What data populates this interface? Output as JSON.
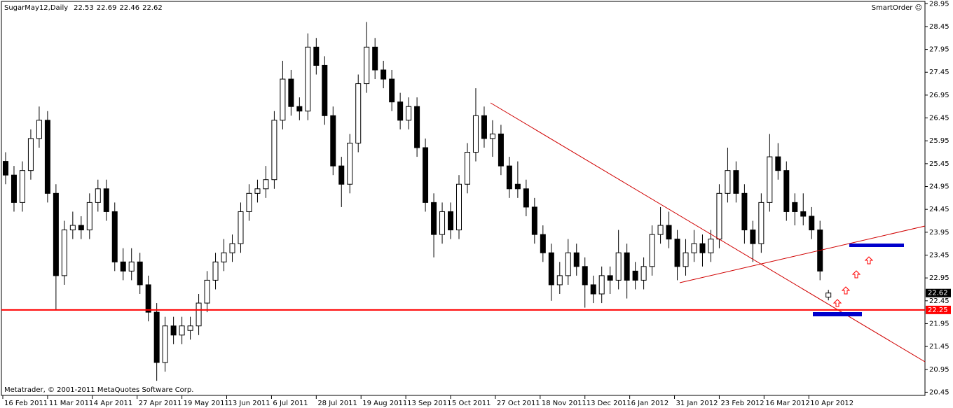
{
  "chart_data": {
    "type": "candlestick",
    "title": "SugarMay12,Daily",
    "watermark": "SmartOrder ☺",
    "footer": "Metatrader, © 2001-2011 MetaQuotes Software Corp.",
    "x": [
      1,
      4,
      7,
      10,
      13,
      16,
      19,
      22,
      25,
      28,
      31,
      34,
      37,
      40,
      43,
      46,
      49,
      52,
      55,
      58,
      61,
      64,
      67,
      70,
      73,
      76,
      79,
      82,
      85,
      88,
      91,
      94,
      97,
      100,
      103,
      106,
      109,
      112,
      115,
      118,
      121,
      124,
      127,
      130,
      133,
      136,
      139,
      142,
      145,
      148,
      151,
      154,
      157,
      160,
      163,
      166,
      169,
      172,
      175,
      178,
      181,
      184,
      187,
      190,
      193,
      196,
      199,
      202,
      205,
      208,
      211,
      214,
      217,
      220,
      223,
      226,
      229,
      232,
      235,
      238,
      241,
      244,
      247,
      250,
      253,
      256,
      259,
      262,
      265,
      268,
      271,
      274,
      277,
      280,
      283,
      286,
      289,
      292,
      295
    ],
    "open": [
      25.5,
      25.2,
      24.6,
      25.3,
      26.0,
      26.4,
      24.8,
      23.0,
      24.0,
      24.1,
      24.0,
      24.6,
      24.9,
      24.4,
      23.3,
      23.1,
      23.3,
      22.8,
      22.2,
      21.1,
      21.9,
      21.7,
      21.8,
      21.9,
      22.4,
      22.9,
      23.3,
      23.5,
      23.7,
      24.4,
      24.8,
      24.9,
      25.1,
      26.4,
      27.3,
      26.7,
      26.6,
      28.0,
      27.6,
      26.5,
      25.4,
      25.0,
      25.9,
      27.2,
      28.0,
      27.5,
      27.3,
      26.8,
      26.4,
      26.7,
      25.8,
      24.6,
      23.9,
      24.4,
      24.0,
      25.0,
      25.7,
      26.5,
      26.0,
      26.1,
      25.4,
      25.0,
      24.9,
      24.5,
      23.9,
      23.5,
      22.8,
      23.0,
      23.5,
      23.2,
      22.8,
      22.6,
      23.0,
      22.9,
      23.5,
      23.1,
      22.9,
      23.2,
      23.9,
      24.1,
      23.8,
      23.2,
      23.5,
      23.7,
      23.5,
      23.8,
      24.8,
      25.3,
      24.8,
      24.0,
      23.7,
      24.6,
      25.6,
      25.3,
      24.6,
      24.4,
      24.3,
      24.0,
      22.53
    ],
    "high": [
      25.7,
      25.4,
      25.5,
      26.2,
      26.7,
      26.6,
      25.0,
      24.2,
      24.4,
      24.3,
      24.8,
      25.1,
      25.1,
      24.6,
      23.6,
      23.6,
      23.5,
      23.0,
      22.4,
      22.1,
      22.1,
      22.1,
      22.1,
      22.6,
      23.1,
      23.5,
      23.8,
      23.9,
      24.6,
      25.0,
      25.1,
      25.4,
      26.6,
      27.7,
      27.5,
      26.9,
      28.3,
      28.2,
      27.8,
      26.7,
      25.6,
      26.1,
      27.4,
      28.55,
      28.2,
      27.7,
      27.5,
      27.0,
      26.9,
      26.9,
      26.0,
      24.8,
      24.6,
      24.6,
      25.2,
      25.9,
      27.1,
      26.7,
      26.4,
      26.3,
      25.6,
      25.5,
      25.1,
      24.7,
      24.1,
      23.7,
      23.3,
      23.8,
      23.7,
      23.4,
      23.0,
      23.2,
      23.2,
      24.0,
      23.7,
      23.3,
      23.4,
      24.1,
      24.5,
      24.4,
      24.0,
      23.8,
      24.0,
      23.9,
      24.0,
      25.0,
      25.8,
      25.5,
      25.0,
      24.2,
      24.8,
      26.1,
      25.9,
      25.5,
      24.8,
      24.8,
      24.5,
      24.2,
      22.69
    ],
    "low": [
      25.0,
      24.4,
      24.4,
      25.1,
      25.8,
      24.6,
      22.25,
      22.8,
      23.8,
      23.8,
      23.8,
      24.4,
      24.2,
      23.1,
      22.9,
      22.9,
      22.6,
      22.0,
      20.7,
      20.9,
      21.5,
      21.5,
      21.6,
      21.7,
      22.2,
      22.7,
      23.1,
      23.3,
      23.5,
      24.2,
      24.6,
      24.7,
      24.9,
      26.2,
      26.5,
      26.4,
      26.4,
      27.4,
      26.3,
      25.2,
      24.5,
      24.8,
      25.7,
      27.0,
      27.3,
      27.1,
      26.6,
      26.2,
      26.2,
      25.6,
      24.4,
      23.4,
      23.7,
      23.8,
      23.8,
      24.8,
      25.5,
      25.8,
      25.6,
      25.2,
      24.7,
      24.7,
      24.3,
      23.7,
      23.3,
      22.45,
      22.6,
      22.8,
      23.0,
      22.3,
      22.4,
      22.4,
      22.6,
      22.7,
      22.5,
      22.7,
      22.7,
      23.0,
      23.7,
      23.6,
      22.9,
      23.0,
      23.3,
      23.2,
      23.3,
      23.6,
      24.6,
      24.6,
      23.7,
      23.3,
      23.5,
      24.4,
      25.1,
      24.2,
      24.1,
      24.1,
      23.8,
      22.9,
      22.46
    ],
    "close": [
      25.2,
      24.6,
      25.3,
      26.0,
      26.4,
      24.8,
      23.0,
      24.0,
      24.1,
      24.0,
      24.6,
      24.9,
      24.4,
      23.3,
      23.1,
      23.3,
      22.8,
      22.2,
      21.1,
      21.9,
      21.7,
      21.9,
      21.9,
      22.4,
      22.9,
      23.3,
      23.5,
      23.7,
      24.4,
      24.8,
      24.9,
      25.1,
      26.4,
      27.3,
      26.7,
      26.6,
      28.0,
      27.6,
      26.5,
      25.4,
      25.0,
      25.9,
      27.2,
      28.0,
      27.5,
      27.3,
      26.8,
      26.4,
      26.7,
      25.8,
      24.6,
      23.9,
      24.4,
      24.0,
      25.0,
      25.7,
      26.5,
      26.0,
      26.1,
      25.4,
      24.9,
      24.9,
      24.5,
      23.9,
      23.5,
      22.8,
      23.0,
      23.5,
      23.2,
      22.8,
      22.6,
      23.0,
      22.9,
      23.5,
      22.9,
      22.9,
      23.2,
      23.9,
      24.1,
      23.8,
      23.2,
      23.5,
      23.7,
      23.5,
      23.8,
      24.8,
      25.3,
      24.8,
      24.0,
      23.7,
      24.6,
      25.6,
      25.3,
      24.4,
      24.4,
      24.3,
      24.0,
      23.1,
      22.62
    ],
    "up_color": "#ffffff",
    "down_color": "#000000",
    "level": 22.25,
    "level_color": "#ff0000",
    "xlim": [
      -0.5,
      329.5
    ],
    "ylim": [
      20.38,
      29.0
    ],
    "xticks": [
      {
        "value": 0,
        "label": "16 Feb 2011"
      },
      {
        "value": 16,
        "label": "11 Mar 2011"
      },
      {
        "value": 32,
        "label": "4 Apr 2011"
      },
      {
        "value": 48,
        "label": "27 Apr 2011"
      },
      {
        "value": 64,
        "label": "19 May 2011"
      },
      {
        "value": 80,
        "label": "13 Jun 2011"
      },
      {
        "value": 96,
        "label": "6 Jul 2011"
      },
      {
        "value": 112,
        "label": "28 Jul 2011"
      },
      {
        "value": 128,
        "label": "19 Aug 2011"
      },
      {
        "value": 144,
        "label": "13 Sep 2011"
      },
      {
        "value": 160,
        "label": "5 Oct 2011"
      },
      {
        "value": 176,
        "label": "27 Oct 2011"
      },
      {
        "value": 192,
        "label": "18 Nov 2011"
      },
      {
        "value": 208,
        "label": "13 Dec 2011"
      },
      {
        "value": 224,
        "label": "6 Jan 2012"
      },
      {
        "value": 240,
        "label": "31 Jan 2012"
      },
      {
        "value": 256,
        "label": "23 Feb 2012"
      },
      {
        "value": 272,
        "label": "16 Mar 2012"
      },
      {
        "value": 288,
        "label": "10 Apr 2012"
      }
    ],
    "yticks": [
      28.95,
      28.45,
      27.95,
      27.45,
      26.95,
      26.45,
      25.95,
      25.45,
      24.95,
      24.45,
      23.95,
      23.45,
      22.95,
      22.45,
      21.95,
      21.45,
      20.95,
      20.45
    ]
  }
}
